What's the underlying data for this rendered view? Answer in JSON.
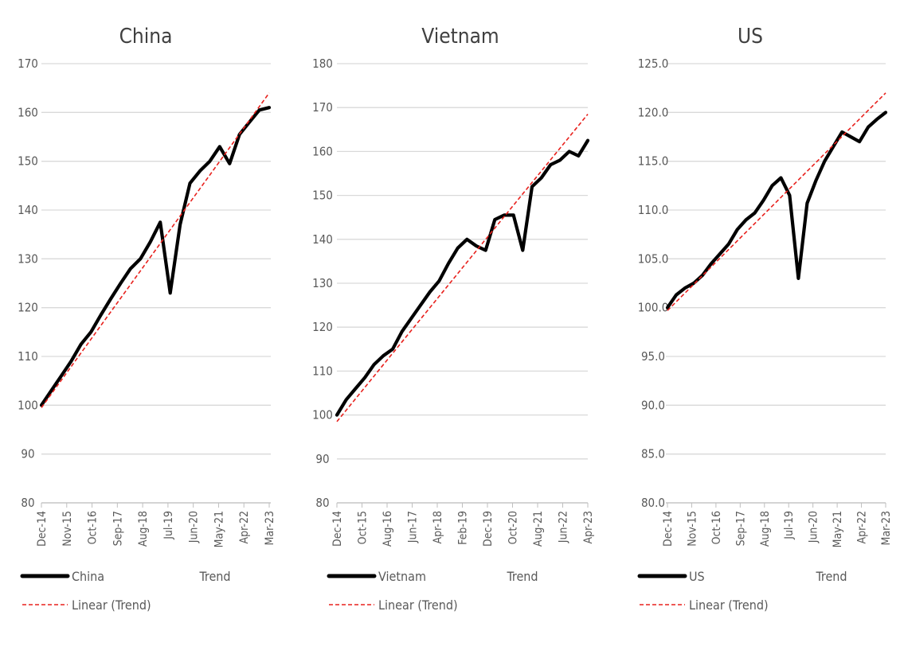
{
  "chart_data": [
    {
      "type": "line",
      "title": "China",
      "ylim": [
        80,
        170
      ],
      "yticks": [
        "80",
        "90",
        "100",
        "110",
        "120",
        "130",
        "140",
        "150",
        "160",
        "170"
      ],
      "x_tick_labels": [
        "Dec-14",
        "Nov-15",
        "Oct-16",
        "Sep-17",
        "Aug-18",
        "Jul-19",
        "Jun-20",
        "May-21",
        "Apr-22",
        "Mar-23"
      ],
      "grid": true,
      "legend_placement": "bottom",
      "legend": {
        "series": "China",
        "extra": "Trend",
        "trendline": "Linear (Trend)"
      },
      "series": [
        {
          "name": "China",
          "color": "#000000",
          "values": [
            100,
            103,
            106,
            109,
            112.5,
            115,
            118.5,
            121.8,
            125,
            128,
            130,
            133.5,
            137.5,
            123,
            137,
            145.5,
            148,
            150,
            153,
            149.5,
            155.5,
            158,
            160.5,
            161
          ]
        },
        {
          "name": "Linear (Trend)",
          "color": "#e8211d",
          "dashed": true,
          "values": [
            99.5,
            164
          ]
        }
      ]
    },
    {
      "type": "line",
      "title": "Vietnam",
      "ylim": [
        80,
        180
      ],
      "yticks": [
        "80",
        "90",
        "100",
        "110",
        "120",
        "130",
        "140",
        "150",
        "160",
        "170",
        "180"
      ],
      "x_tick_labels": [
        "Dec-14",
        "Oct-15",
        "Aug-16",
        "Jun-17",
        "Apr-18",
        "Feb-19",
        "Dec-19",
        "Oct-20",
        "Aug-21",
        "Jun-22",
        "Apr-23"
      ],
      "grid": true,
      "legend_placement": "bottom",
      "legend": {
        "series": "Vietnam",
        "extra": "Trend",
        "trendline": "Linear (Trend)"
      },
      "series": [
        {
          "name": "Vietnam",
          "color": "#000000",
          "values": [
            100,
            103.5,
            106,
            108.5,
            111.5,
            113.5,
            115,
            119,
            122,
            125,
            128,
            130.5,
            134.5,
            138,
            140,
            138.5,
            137.5,
            144.5,
            145.5,
            145.5,
            137.5,
            152,
            154,
            157,
            158,
            160,
            159,
            162.5
          ]
        },
        {
          "name": "Linear (Trend)",
          "color": "#e8211d",
          "dashed": true,
          "values": [
            98.5,
            168.5
          ]
        }
      ]
    },
    {
      "type": "line",
      "title": "US",
      "ylim": [
        80,
        125
      ],
      "yticks": [
        "80.0",
        "85.0",
        "90.0",
        "95.0",
        "100.0",
        "105.0",
        "110.0",
        "115.0",
        "120.0",
        "125.0"
      ],
      "x_tick_labels": [
        "Dec-14",
        "Nov-15",
        "Oct-16",
        "Sep-17",
        "Aug-18",
        "Jul-19",
        "Jun-20",
        "May-21",
        "Apr-22",
        "Mar-23"
      ],
      "grid": true,
      "legend_placement": "bottom",
      "legend": {
        "series": "US",
        "extra": "Trend",
        "trendline": "Linear (Trend)"
      },
      "series": [
        {
          "name": "US",
          "color": "#000000",
          "values": [
            100,
            101.3,
            102,
            102.5,
            103.3,
            104.5,
            105.5,
            106.5,
            108,
            109,
            109.7,
            111,
            112.5,
            113.3,
            111.5,
            103,
            110.7,
            113,
            115,
            116.5,
            118,
            117.5,
            117,
            118.5,
            119.3,
            120
          ]
        },
        {
          "name": "Linear (Trend)",
          "color": "#e8211d",
          "dashed": true,
          "values": [
            99.7,
            122
          ]
        }
      ]
    }
  ]
}
